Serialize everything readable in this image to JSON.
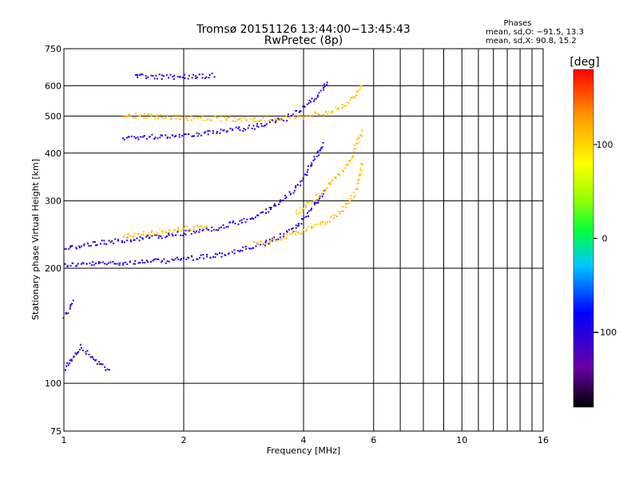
{
  "chart_data": {
    "type": "scatter",
    "title": "Tromsø 20151126 13:44:00−13:45:43",
    "subtitle": "RwPretec (8p)",
    "xlabel": "Frequency [MHz]",
    "ylabel": "Stationary phase Virtual Height [km]",
    "x_scale": "log",
    "y_scale": "log",
    "xlim": [
      1,
      16
    ],
    "ylim": [
      75,
      750
    ],
    "xticks": [
      1,
      2,
      4,
      6,
      10,
      16
    ],
    "xtick_labels": [
      "1",
      "2",
      "4",
      "6",
      "10",
      "16"
    ],
    "x_minor_grid": [
      7,
      8,
      9,
      11,
      12,
      13,
      14,
      15
    ],
    "yticks": [
      75,
      100,
      200,
      300,
      400,
      500,
      600,
      750
    ],
    "ytick_labels": [
      "75",
      "100",
      "200",
      "300",
      "400",
      "500",
      "600",
      "750"
    ],
    "grid": true,
    "stats": {
      "heading": "Phases",
      "line_o": "mean, sd,O: −91.5, 13.3",
      "line_x": "mean, sd,X:  90.8, 15.2"
    },
    "colorbar": {
      "label": "[deg]",
      "range": [
        -180,
        180
      ],
      "ticks": [
        100,
        0,
        -100
      ],
      "tick_labels": [
        "100",
        "0",
        "−100"
      ]
    },
    "series": [
      {
        "name": "O",
        "color_phase_deg": -100,
        "segments": [
          {
            "x": [
              1.0,
              1.3,
              1.8,
              2.5,
              3.2,
              3.8,
              4.2,
              4.5
            ],
            "y": [
              205,
              207,
              210,
              218,
              233,
              255,
              290,
              320
            ]
          },
          {
            "x": [
              1.0,
              1.15,
              1.4,
              1.8,
              2.4,
              3.0,
              3.5,
              3.9,
              4.2,
              4.5
            ],
            "y": [
              225,
              232,
              238,
              244,
              255,
              272,
              300,
              335,
              380,
              430
            ]
          },
          {
            "x": [
              1.4,
              1.8,
              2.4,
              3.0,
              3.6,
              4.0,
              4.3,
              4.6
            ],
            "y": [
              440,
              445,
              455,
              470,
              495,
              530,
              565,
              620
            ]
          },
          {
            "x": [
              1.0,
              1.05,
              1.1,
              1.2,
              1.3
            ],
            "y": [
              110,
              118,
              125,
              115,
              108
            ]
          },
          {
            "x": [
              1.0,
              1.03,
              1.06
            ],
            "y": [
              150,
              158,
              165
            ]
          },
          {
            "x": [
              1.5,
              1.8,
              2.1,
              2.4
            ],
            "y": [
              640,
              635,
              638,
              640
            ]
          }
        ]
      },
      {
        "name": "X",
        "color_phase_deg": 110,
        "segments": [
          {
            "x": [
              3.0,
              3.5,
              4.0,
              4.5,
              5.0,
              5.4,
              5.6
            ],
            "y": [
              232,
              240,
              252,
              265,
              285,
              320,
              380
            ]
          },
          {
            "x": [
              3.8,
              4.2,
              4.6,
              5.0,
              5.3,
              5.6
            ],
            "y": [
              280,
              300,
              330,
              360,
              400,
              460
            ]
          },
          {
            "x": [
              1.4,
              1.8,
              2.2,
              2.8,
              3.4,
              4.0,
              4.6,
              5.2,
              5.6
            ],
            "y": [
              505,
              500,
              495,
              492,
              495,
              500,
              515,
              545,
              610
            ]
          },
          {
            "x": [
              1.4,
              1.7,
              2.0,
              2.3
            ],
            "y": [
              245,
              250,
              255,
              258
            ]
          }
        ]
      }
    ]
  }
}
